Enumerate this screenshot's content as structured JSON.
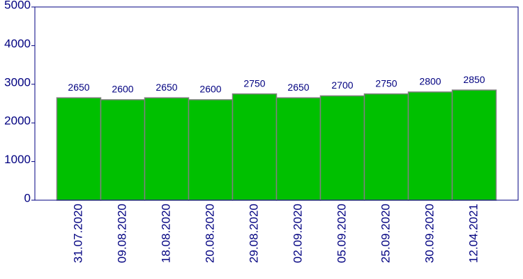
{
  "chart_data": {
    "type": "bar",
    "categories": [
      "31.07.2020",
      "09.08.2020",
      "18.08.2020",
      "20.08.2020",
      "29.08.2020",
      "02.09.2020",
      "05.09.2020",
      "25.09.2020",
      "30.09.2020",
      "12.04.2021"
    ],
    "values": [
      2650,
      2600,
      2650,
      2600,
      2750,
      2650,
      2700,
      2750,
      2800,
      2850
    ],
    "color": "#00c000",
    "ylim": [
      0,
      5000
    ],
    "yticks": [
      0,
      1000,
      2000,
      3000,
      4000,
      5000
    ],
    "grid": false
  }
}
